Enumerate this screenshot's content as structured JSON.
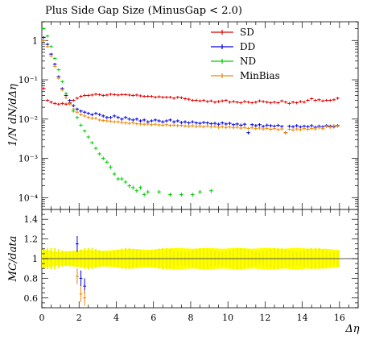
{
  "chart_data": [
    {
      "type": "scatter",
      "title": "Plus Side Gap Size (MinusGap < 2.0)",
      "ylabel": "1/N dN/dΔη",
      "xlim": [
        0,
        17
      ],
      "ylim": [
        5e-05,
        3
      ],
      "yscale": "log",
      "legend_position": "top-right",
      "y_tick_labels": [
        "1",
        "10⁻¹",
        "10⁻²",
        "10⁻³",
        "10⁻⁴"
      ],
      "series": [
        {
          "name": "SD",
          "color": "#dd0000",
          "x": [
            0.1,
            0.3,
            0.5,
            0.7,
            0.9,
            1.1,
            1.3,
            1.5,
            1.7,
            1.9,
            2.1,
            2.3,
            2.5,
            2.7,
            2.9,
            3.1,
            3.3,
            3.5,
            3.7,
            3.9,
            4.1,
            4.3,
            4.5,
            4.7,
            4.9,
            5.1,
            5.3,
            5.5,
            5.7,
            5.9,
            6.1,
            6.3,
            6.5,
            6.7,
            6.9,
            7.1,
            7.3,
            7.5,
            7.7,
            7.9,
            8.1,
            8.3,
            8.5,
            8.7,
            8.9,
            9.1,
            9.3,
            9.5,
            9.7,
            9.9,
            10.1,
            10.3,
            10.5,
            10.7,
            10.9,
            11.1,
            11.3,
            11.5,
            11.7,
            11.9,
            12.1,
            12.3,
            12.5,
            12.7,
            12.9,
            13.1,
            13.3,
            13.5,
            13.7,
            13.9,
            14.1,
            14.3,
            14.5,
            14.7,
            14.9,
            15.1,
            15.3,
            15.5,
            15.7,
            15.9
          ],
          "y": [
            0.06,
            0.03,
            0.027,
            0.025,
            0.024,
            0.025,
            0.024,
            0.026,
            0.03,
            0.034,
            0.038,
            0.04,
            0.04,
            0.041,
            0.043,
            0.042,
            0.04,
            0.041,
            0.043,
            0.042,
            0.041,
            0.042,
            0.042,
            0.041,
            0.04,
            0.041,
            0.039,
            0.038,
            0.038,
            0.038,
            0.036,
            0.037,
            0.036,
            0.036,
            0.036,
            0.034,
            0.036,
            0.035,
            0.033,
            0.032,
            0.03,
            0.03,
            0.029,
            0.03,
            0.028,
            0.029,
            0.027,
            0.028,
            0.029,
            0.03,
            0.027,
            0.028,
            0.027,
            0.026,
            0.028,
            0.027,
            0.026,
            0.027,
            0.029,
            0.028,
            0.027,
            0.026,
            0.027,
            0.026,
            0.029,
            0.027,
            0.025,
            0.027,
            0.026,
            0.028,
            0.027,
            0.03,
            0.033,
            0.03,
            0.031,
            0.029,
            0.03,
            0.03,
            0.031,
            0.034
          ]
        },
        {
          "name": "DD",
          "color": "#0000dd",
          "x": [
            0.1,
            0.3,
            0.5,
            0.7,
            0.9,
            1.1,
            1.3,
            1.5,
            1.7,
            1.9,
            2.1,
            2.3,
            2.5,
            2.7,
            2.9,
            3.1,
            3.3,
            3.5,
            3.7,
            3.9,
            4.1,
            4.3,
            4.5,
            4.7,
            4.9,
            5.1,
            5.3,
            5.5,
            5.7,
            5.9,
            6.1,
            6.3,
            6.5,
            6.7,
            6.9,
            7.1,
            7.3,
            7.5,
            7.7,
            7.9,
            8.1,
            8.3,
            8.5,
            8.7,
            8.9,
            9.1,
            9.3,
            9.5,
            9.7,
            9.9,
            10.1,
            10.3,
            10.5,
            10.7,
            10.9,
            11.1,
            11.3,
            11.5,
            11.7,
            11.9,
            12.1,
            12.3,
            12.5,
            12.7,
            12.9,
            13.1,
            13.3,
            13.5,
            13.7,
            13.9,
            14.1,
            14.3,
            14.5,
            14.7,
            14.9,
            15.1,
            15.3,
            15.5,
            15.7,
            15.9
          ],
          "y": [
            1.2,
            0.8,
            0.45,
            0.25,
            0.12,
            0.06,
            0.04,
            0.03,
            0.022,
            0.018,
            0.016,
            0.015,
            0.014,
            0.013,
            0.014,
            0.013,
            0.012,
            0.011,
            0.011,
            0.012,
            0.011,
            0.01,
            0.011,
            0.01,
            0.0095,
            0.01,
            0.009,
            0.0095,
            0.0085,
            0.009,
            0.0095,
            0.009,
            0.0085,
            0.009,
            0.0095,
            0.0085,
            0.009,
            0.0082,
            0.0085,
            0.008,
            0.0085,
            0.008,
            0.0078,
            0.0082,
            0.008,
            0.0076,
            0.0078,
            0.0074,
            0.008,
            0.0075,
            0.0078,
            0.0072,
            0.0075,
            0.007,
            0.0074,
            0.0045,
            0.0072,
            0.0068,
            0.0072,
            0.0065,
            0.007,
            0.0068,
            0.0066,
            0.0069,
            0.0065,
            0.0045,
            0.0066,
            0.0064,
            0.0068,
            0.0063,
            0.0066,
            0.0064,
            0.0068,
            0.0062,
            0.0066,
            0.0064,
            0.0068,
            0.0066,
            0.0064,
            0.0068
          ]
        },
        {
          "name": "ND",
          "color": "#00cc00",
          "x": [
            0.1,
            0.3,
            0.5,
            0.7,
            0.9,
            1.1,
            1.3,
            1.5,
            1.7,
            1.9,
            2.1,
            2.3,
            2.5,
            2.7,
            2.9,
            3.1,
            3.3,
            3.5,
            3.7,
            3.9,
            4.1,
            4.3,
            4.5,
            4.7,
            4.9,
            5.1,
            5.3,
            5.5,
            5.7,
            6.3,
            6.9,
            7.5,
            8.1,
            8.5,
            9.1
          ],
          "y": [
            2.0,
            1.3,
            0.7,
            0.35,
            0.18,
            0.09,
            0.045,
            0.025,
            0.016,
            0.011,
            0.007,
            0.005,
            0.0035,
            0.0025,
            0.0018,
            0.0013,
            0.001,
            0.0008,
            0.0006,
            0.0004,
            0.0003,
            0.0003,
            0.00025,
            0.0002,
            0.00018,
            0.00015,
            0.00018,
            0.00012,
            0.00014,
            0.00014,
            0.00012,
            0.00012,
            0.00012,
            0.00014,
            0.00015
          ]
        },
        {
          "name": "MinBias",
          "color": "#ee8800",
          "x": [
            0.1,
            0.3,
            0.5,
            0.7,
            0.9,
            1.1,
            1.3,
            1.5,
            1.7,
            1.9,
            2.1,
            2.3,
            2.5,
            2.7,
            2.9,
            3.1,
            3.3,
            3.5,
            3.7,
            3.9,
            4.1,
            4.3,
            4.5,
            4.7,
            4.9,
            5.1,
            5.3,
            5.5,
            5.7,
            5.9,
            6.1,
            6.3,
            6.5,
            6.7,
            6.9,
            7.1,
            7.3,
            7.5,
            7.7,
            7.9,
            8.1,
            8.3,
            8.5,
            8.7,
            8.9,
            9.1,
            9.3,
            9.5,
            9.7,
            9.9,
            10.1,
            10.3,
            10.5,
            10.7,
            10.9,
            11.1,
            11.3,
            11.5,
            11.7,
            11.9,
            12.1,
            12.3,
            12.5,
            12.7,
            12.9,
            13.1,
            13.3,
            13.5,
            13.7,
            13.9,
            14.1,
            14.3,
            14.5,
            14.7,
            14.9,
            15.1,
            15.3,
            15.5,
            15.7,
            15.9
          ],
          "y": [
            1.0,
            0.7,
            0.4,
            0.22,
            0.11,
            0.055,
            0.035,
            0.024,
            0.018,
            0.015,
            0.013,
            0.012,
            0.011,
            0.0105,
            0.0105,
            0.0095,
            0.0092,
            0.009,
            0.0088,
            0.0085,
            0.0085,
            0.0082,
            0.008,
            0.0078,
            0.008,
            0.0076,
            0.0075,
            0.0074,
            0.0075,
            0.0072,
            0.0074,
            0.0071,
            0.007,
            0.0072,
            0.0069,
            0.007,
            0.0068,
            0.0069,
            0.0067,
            0.0066,
            0.0068,
            0.0065,
            0.0066,
            0.0064,
            0.0067,
            0.0063,
            0.0065,
            0.0062,
            0.0064,
            0.0061,
            0.0063,
            0.006,
            0.0062,
            0.0059,
            0.0061,
            0.0058,
            0.006,
            0.0057,
            0.0059,
            0.0056,
            0.0058,
            0.0055,
            0.0057,
            0.0054,
            0.0056,
            0.0045,
            0.0055,
            0.0053,
            0.0056,
            0.0054,
            0.0057,
            0.0055,
            0.0058,
            0.0056,
            0.006,
            0.0057,
            0.0065,
            0.0062,
            0.0068,
            0.0066
          ]
        }
      ]
    },
    {
      "type": "scatter",
      "ylabel": "MC/data",
      "xlabel": "Δη",
      "xlim": [
        0,
        17
      ],
      "ylim": [
        0.5,
        1.5
      ],
      "x_tick_labels": [
        "0",
        "2",
        "4",
        "6",
        "8",
        "10",
        "12",
        "14",
        "16"
      ],
      "y_tick_labels": [
        "1.4",
        "1.2",
        "1",
        "0.8",
        "0.6"
      ],
      "band": {
        "color": "#ffff00",
        "x": [
          0.1,
          0.9,
          1.7,
          2.5,
          3.3,
          4.1,
          4.9,
          5.7,
          6.5,
          7.3,
          8.1,
          8.9,
          9.7,
          10.5,
          11.3,
          12.1,
          12.9,
          13.7,
          14.5,
          15.3,
          15.9
        ],
        "half_width": [
          0.09,
          0.07,
          0.08,
          0.09,
          0.08,
          0.09,
          0.1,
          0.09,
          0.1,
          0.11,
          0.1,
          0.11,
          0.1,
          0.11,
          0.1,
          0.11,
          0.1,
          0.11,
          0.1,
          0.1,
          0.09
        ]
      },
      "reference_line": {
        "y": 1.0,
        "color": "#555555"
      },
      "series": [
        {
          "name": "DD",
          "color": "#0000dd",
          "x": [
            1.9,
            2.1,
            2.3
          ],
          "y": [
            1.15,
            0.8,
            0.72
          ]
        },
        {
          "name": "MinBias",
          "color": "#ee8800",
          "x": [
            1.9,
            2.1,
            2.3
          ],
          "y": [
            0.82,
            0.64,
            0.6
          ]
        }
      ]
    }
  ]
}
